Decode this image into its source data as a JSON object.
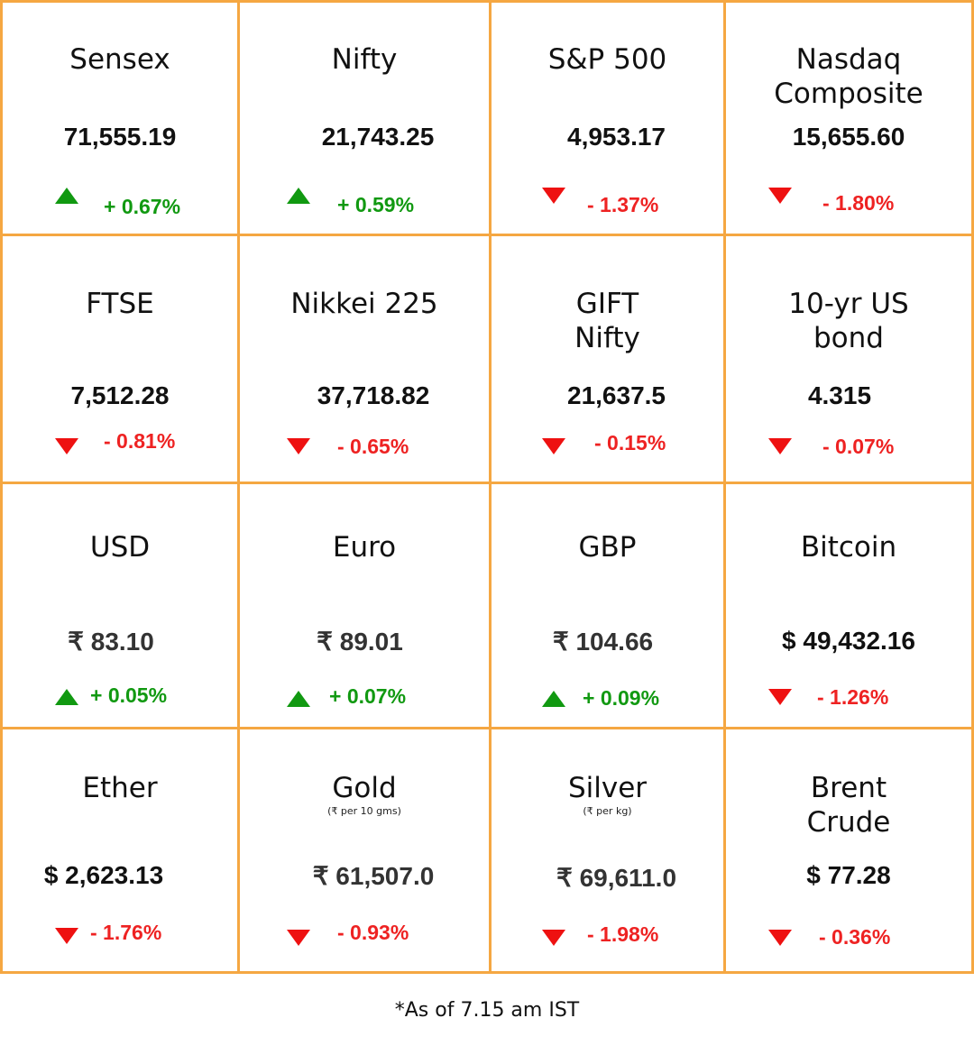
{
  "cells": [
    {
      "name": "Sensex",
      "value": "71,555.19",
      "change": "+ 0.67%",
      "direction": "up"
    },
    {
      "name": "Nifty",
      "value": "21,743.25",
      "change": "+ 0.59%",
      "direction": "up"
    },
    {
      "name": "S&P 500",
      "value": "4,953.17",
      "change": "- 1.37%",
      "direction": "down"
    },
    {
      "name": "Nasdaq\nComposite",
      "value": "15,655.60",
      "change": "- 1.80%",
      "direction": "down"
    },
    {
      "name": "FTSE",
      "value": "7,512.28",
      "change": "- 0.81%",
      "direction": "down"
    },
    {
      "name": "Nikkei 225",
      "value": "37,718.82",
      "change": "- 0.65%",
      "direction": "down"
    },
    {
      "name": "GIFT\nNifty",
      "value": "21,637.5",
      "change": "- 0.15%",
      "direction": "down"
    },
    {
      "name": "10-yr US\nbond",
      "value": "4.315",
      "change": "- 0.07%",
      "direction": "down"
    },
    {
      "name": "USD",
      "value": "₹ 83.10",
      "change": "+ 0.05%",
      "direction": "up"
    },
    {
      "name": "Euro",
      "value": "₹ 89.01",
      "change": "+ 0.07%",
      "direction": "up"
    },
    {
      "name": "GBP",
      "value": "₹ 104.66",
      "change": "+ 0.09%",
      "direction": "up"
    },
    {
      "name": "Bitcoin",
      "value": "$ 49,432.16",
      "change": "- 1.26%",
      "direction": "down"
    },
    {
      "name": "Ether",
      "value": "$ 2,623.13",
      "change": "- 1.76%",
      "direction": "down"
    },
    {
      "name": "Gold",
      "unit": "(₹ per 10 gms)",
      "value": "₹ 61,507.0",
      "change": "- 0.93%",
      "direction": "down"
    },
    {
      "name": "Silver",
      "unit": "(₹ per kg)",
      "value": "₹ 69,611.0",
      "change": "- 1.98%",
      "direction": "down"
    },
    {
      "name": "Brent\nCrude",
      "value": "$ 77.28",
      "change": "- 0.36%",
      "direction": "down"
    }
  ],
  "footnote": "*As of 7.15 am IST",
  "colors": {
    "border": "#F5A742",
    "up": "#119911",
    "down": "#EE1111"
  }
}
